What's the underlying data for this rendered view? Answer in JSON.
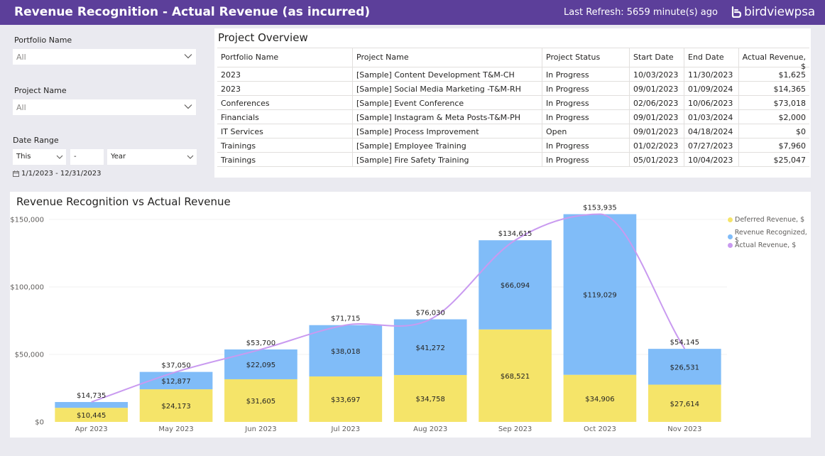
{
  "header": {
    "title": "Revenue Recognition - Actual Revenue (as incurred)",
    "refresh_label": "Last Refresh:",
    "refresh_value": "5659 minute(s) ago",
    "logo_text": "birdviewpsa"
  },
  "filters": {
    "portfolio_label": "Portfolio Name",
    "portfolio_value": "All",
    "project_label": "Project Name",
    "project_value": "All",
    "date_label": "Date Range",
    "date_rel": "This",
    "date_count": "-",
    "date_unit": "Year",
    "date_range_text": "1/1/2023 - 12/31/2023"
  },
  "overview": {
    "title": "Project Overview",
    "columns": [
      "Portfolio Name",
      "Project Name",
      "Project Status",
      "Start Date",
      "End Date",
      "Actual Revenue, $"
    ],
    "rows": [
      [
        "2023",
        "[Sample] Content Development T&M-CH",
        "In Progress",
        "10/03/2023",
        "11/30/2023",
        "$1,625"
      ],
      [
        "2023",
        "[Sample] Social Media Marketing -T&M-RH",
        "In Progress",
        "09/01/2023",
        "01/09/2024",
        "$14,365"
      ],
      [
        "Conferences",
        "[Sample] Event Conference",
        "In Progress",
        "02/06/2023",
        "10/06/2023",
        "$73,018"
      ],
      [
        "Financials",
        "[Sample] Instagram & Meta Posts-T&M-PH",
        "In Progress",
        "09/01/2023",
        "01/03/2024",
        "$2,000"
      ],
      [
        "IT Services",
        "[Sample] Process Improvement",
        "Open",
        "09/01/2023",
        "04/18/2024",
        "$0"
      ],
      [
        "Trainings",
        "[Sample] Employee Training",
        "In Progress",
        "01/02/2023",
        "07/27/2023",
        "$7,960"
      ],
      [
        "Trainings",
        "[Sample] Fire Safety Training",
        "In Progress",
        "05/01/2023",
        "10/04/2023",
        "$25,047"
      ]
    ]
  },
  "chart_data": {
    "type": "bar",
    "title": "Revenue Recognition vs Actual Revenue",
    "categories": [
      "Apr 2023",
      "May 2023",
      "Jun 2023",
      "Jul 2023",
      "Aug 2023",
      "Sep 2023",
      "Oct 2023",
      "Nov 2023"
    ],
    "series": [
      {
        "name": "Deferred Revenue, $",
        "type": "bar",
        "stack": "rev",
        "color": "#f5e469",
        "values": [
          10445,
          24173,
          31605,
          33697,
          34758,
          68521,
          34906,
          27614
        ],
        "labels": [
          "$10,445",
          "$24,173",
          "$31,605",
          "$33,697",
          "$34,758",
          "$68,521",
          "$34,906",
          "$27,614"
        ]
      },
      {
        "name": "Revenue Recognized, $",
        "type": "bar",
        "stack": "rev",
        "color": "#80bcf8",
        "values": [
          4290,
          12877,
          22095,
          38018,
          41272,
          66094,
          119029,
          26531
        ],
        "labels": [
          "",
          "$12,877",
          "$22,095",
          "$38,018",
          "$41,272",
          "$66,094",
          "$119,029",
          "$26,531"
        ]
      },
      {
        "name": "Actual Revenue, $",
        "type": "line",
        "color": "#c99af0",
        "values": [
          14735,
          37050,
          53700,
          71715,
          76030,
          134615,
          153935,
          54145
        ],
        "labels": [
          "$14,735",
          "$37,050",
          "$53,700",
          "$71,715",
          "$76,030",
          "$134,615",
          "$153,935",
          "$54,145"
        ]
      }
    ],
    "y_ticks": [
      0,
      50000,
      100000,
      150000
    ],
    "y_tick_labels": [
      "$0",
      "$50,000",
      "$100,000",
      "$150,000"
    ],
    "ylim": [
      0,
      160000
    ],
    "legend_position": "top-right",
    "grid": true
  }
}
